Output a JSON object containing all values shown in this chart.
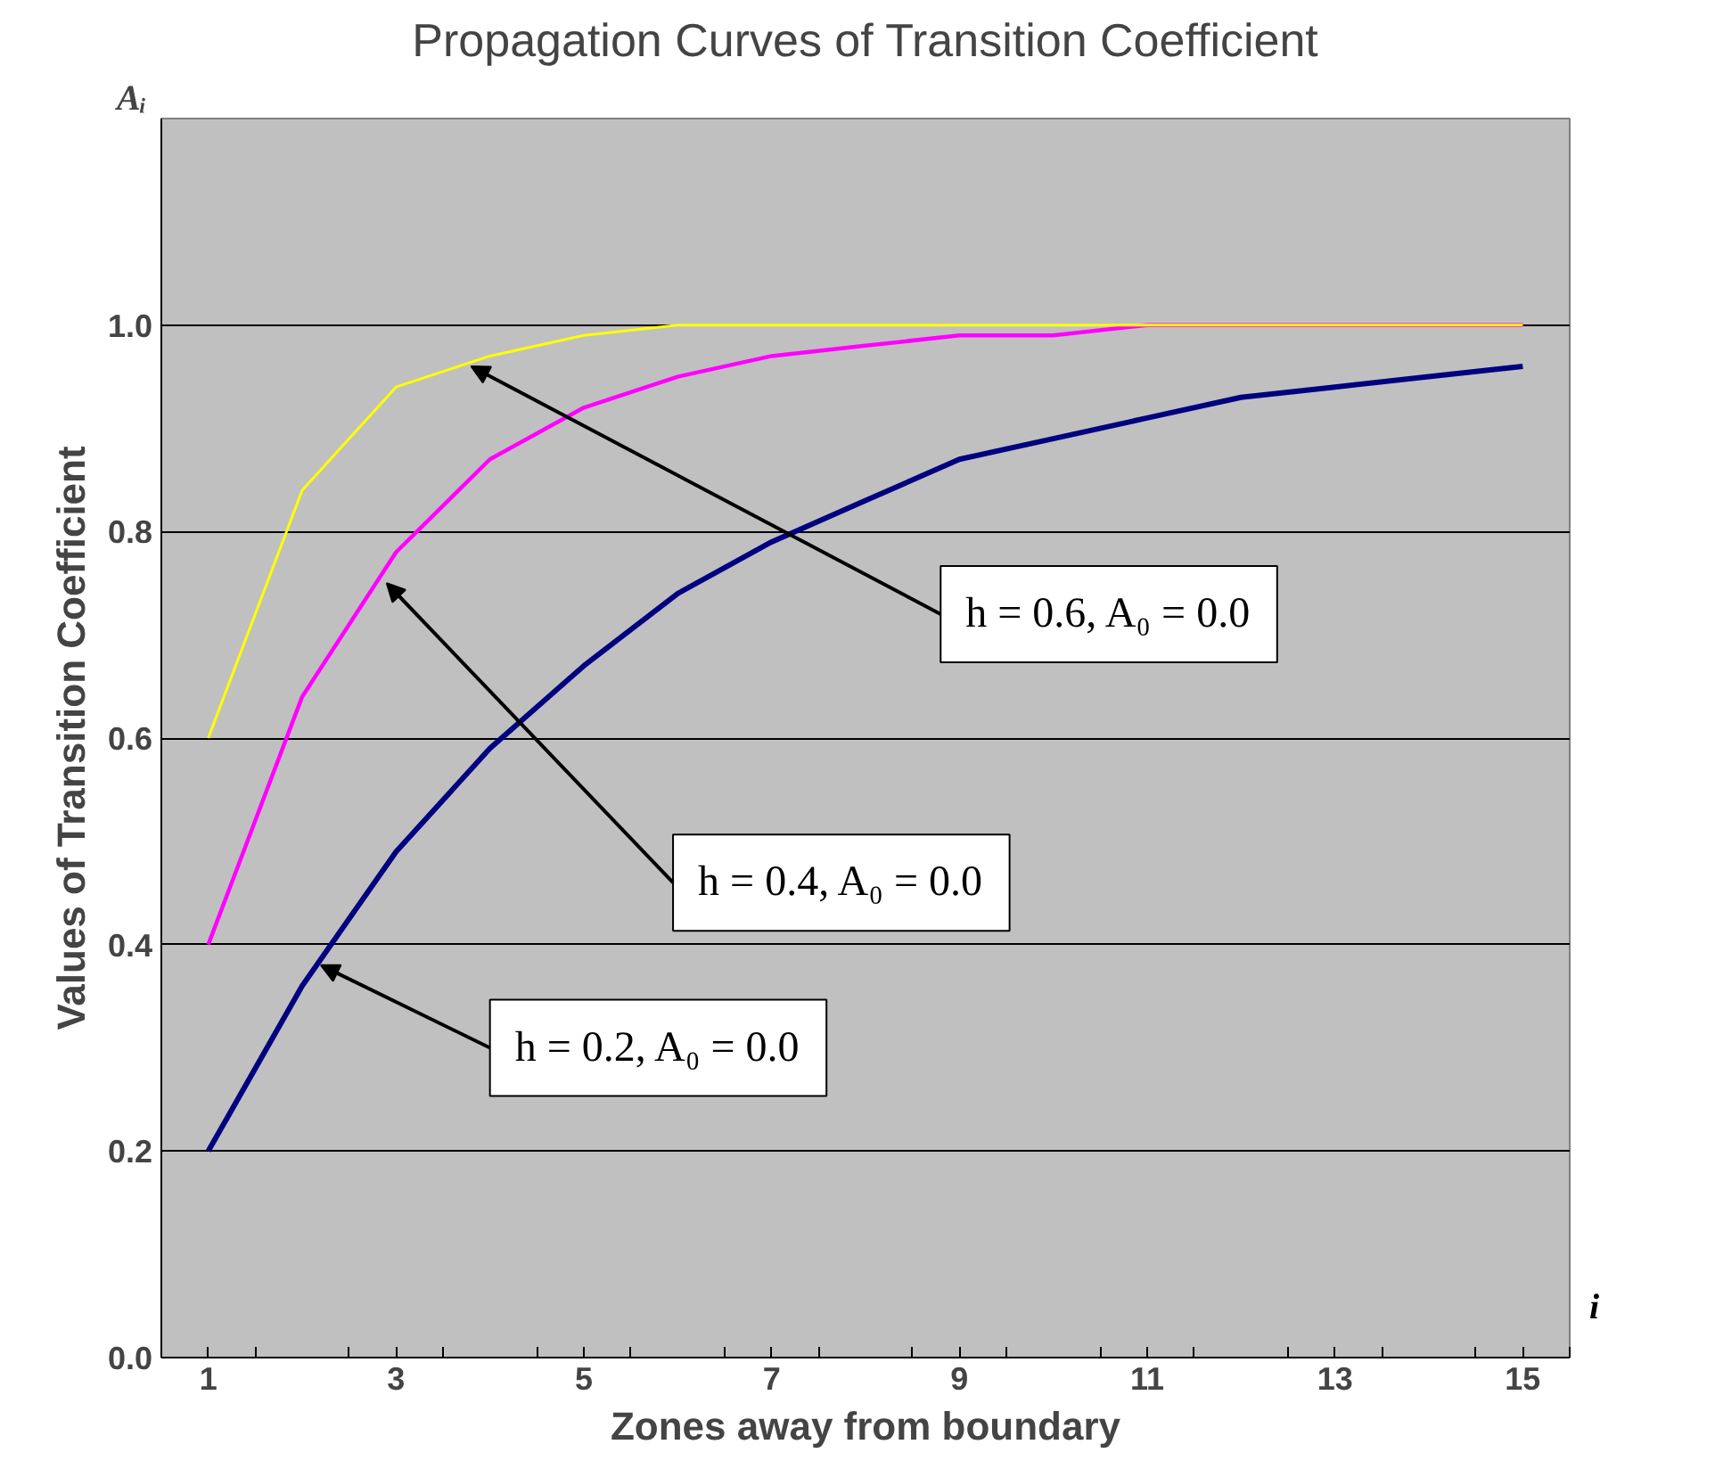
{
  "chart_data": {
    "type": "line",
    "title": "Propagation Curves of Transition Coefficient",
    "xlabel": "Zones away from boundary",
    "ylabel": "Values of Transition Coefficient",
    "x": [
      1,
      2,
      3,
      4,
      5,
      6,
      7,
      8,
      9,
      10,
      11,
      12,
      13,
      14,
      15
    ],
    "xlim": [
      0.5,
      15.5
    ],
    "xticks": [
      {
        "value": 0.5,
        "label": null
      },
      1,
      {
        "value": 1.5,
        "label": null
      },
      {
        "value": 2.5,
        "label": null
      },
      3,
      {
        "value": 3.5,
        "label": null
      },
      {
        "value": 4.5,
        "label": null
      },
      5,
      {
        "value": 5.5,
        "label": null
      },
      {
        "value": 6.5,
        "label": null
      },
      7,
      {
        "value": 7.5,
        "label": null
      },
      {
        "value": 8.5,
        "label": null
      },
      9,
      {
        "value": 9.5,
        "label": null
      },
      {
        "value": 10.5,
        "label": null
      },
      11,
      {
        "value": 11.5,
        "label": null
      },
      {
        "value": 12.5,
        "label": null
      },
      13,
      {
        "value": 13.5,
        "label": null
      },
      {
        "value": 14.5,
        "label": null
      },
      15,
      {
        "value": 15.5,
        "label": null
      }
    ],
    "ylim": [
      0,
      1.2
    ],
    "yticks": [
      {
        "value": 0,
        "label": "0.0"
      },
      {
        "value": 0.2,
        "label": "0.2"
      },
      {
        "value": 0.4,
        "label": "0.4"
      },
      {
        "value": 0.6,
        "label": "0.6"
      },
      {
        "value": 0.8,
        "label": "0.8"
      },
      {
        "value": 1.0,
        "label": "1.0"
      }
    ],
    "grid": "y",
    "marker": "none",
    "line_style": "solid",
    "series": [
      {
        "color": "#ffff00",
        "values": [
          0.6,
          0.84,
          0.94,
          0.97,
          0.99,
          1.0,
          1.0,
          1.0,
          1.0,
          1.0,
          1.0,
          1.0,
          1.0,
          1.0,
          1.0
        ]
      },
      {
        "color": "#ff00ff",
        "values": [
          0.4,
          0.64,
          0.78,
          0.87,
          0.92,
          0.95,
          0.97,
          0.98,
          0.99,
          0.99,
          1.0,
          1.0,
          1.0,
          1.0,
          1.0
        ]
      },
      {
        "color": "#000080",
        "values": [
          0.2,
          0.36,
          0.49,
          0.59,
          0.67,
          0.74,
          0.79,
          0.83,
          0.87,
          0.89,
          0.91,
          0.93,
          0.94,
          0.95,
          0.96
        ]
      }
    ],
    "annotations": [
      {
        "text": "h = 0.6, A₀ = 0.0",
        "x": 3.8,
        "y": 0.96
      },
      {
        "text": "h = 0.4, A₀ = 0.0",
        "x": 2.9,
        "y": 0.75
      },
      {
        "text": "h = 0.2, A₀ = 0.0",
        "x": 2.2,
        "y": 0.38
      },
      "Aᵢ",
      "i"
    ]
  }
}
